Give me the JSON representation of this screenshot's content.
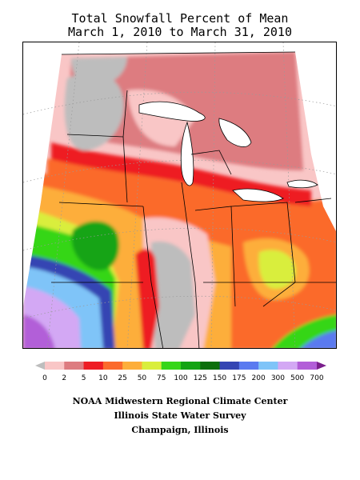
{
  "title": {
    "line1": "Total Snowfall Percent of Mean",
    "line2": "March 1, 2010 to March 31, 2010"
  },
  "legend": {
    "bins": [
      {
        "label": "0",
        "color": "#bdbdbd"
      },
      {
        "label": "2",
        "color": "#f9c6c6"
      },
      {
        "label": "5",
        "color": "#dd7c80"
      },
      {
        "label": "10",
        "color": "#ee1c24"
      },
      {
        "label": "25",
        "color": "#fb6a2c"
      },
      {
        "label": "50",
        "color": "#fdae3a"
      },
      {
        "label": "75",
        "color": "#d9ee3c"
      },
      {
        "label": "100",
        "color": "#36d619"
      },
      {
        "label": "125",
        "color": "#13a413"
      },
      {
        "label": "150",
        "color": "#0c6e0c"
      },
      {
        "label": "175",
        "color": "#3445b3"
      },
      {
        "label": "200",
        "color": "#5a7af0"
      },
      {
        "label": "300",
        "color": "#7fc4f8"
      },
      {
        "label": "500",
        "color": "#d3a8f4"
      },
      {
        "label": "700",
        "color": "#b25ed8"
      },
      {
        "label": "",
        "color": "#7a1e8c"
      }
    ]
  },
  "credits": {
    "line1": "NOAA Midwestern Regional Climate Center",
    "line2": "Illinois State Water Survey",
    "line3": "Champaign, Illinois"
  }
}
